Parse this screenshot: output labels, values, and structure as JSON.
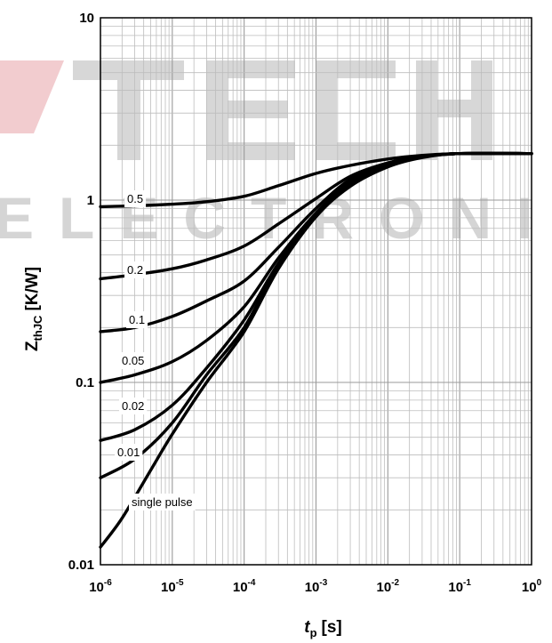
{
  "watermark": {
    "brand": "TECH",
    "subtitle": "ELECTRONIC"
  },
  "chart_data": {
    "type": "line",
    "title": "",
    "xlabel": "t",
    "xlabel_sub": "p",
    "xlabel_unit": "[s]",
    "ylabel": "Z",
    "ylabel_sub": "thJC",
    "ylabel_unit": "[K/W]",
    "x_scale": "log",
    "y_scale": "log",
    "xlim": [
      1e-06,
      1
    ],
    "ylim": [
      0.01,
      10
    ],
    "grid": true,
    "legend": "inline labels on curves",
    "x_ticks": [
      {
        "base": "10",
        "exp": "-6"
      },
      {
        "base": "10",
        "exp": "-5"
      },
      {
        "base": "10",
        "exp": "-4"
      },
      {
        "base": "10",
        "exp": "-3"
      },
      {
        "base": "10",
        "exp": "-2"
      },
      {
        "base": "10",
        "exp": "-1"
      },
      {
        "base": "10",
        "exp": "0"
      }
    ],
    "y_ticks": [
      "0.01",
      "0.1",
      "1",
      "10"
    ],
    "series": [
      {
        "name": "0.5",
        "points": [
          [
            1e-06,
            0.92
          ],
          [
            3e-06,
            0.93
          ],
          [
            1e-05,
            0.95
          ],
          [
            3e-05,
            0.98
          ],
          [
            0.0001,
            1.05
          ],
          [
            0.0003,
            1.2
          ],
          [
            0.001,
            1.4
          ],
          [
            0.003,
            1.55
          ],
          [
            0.01,
            1.68
          ],
          [
            0.03,
            1.76
          ],
          [
            0.1,
            1.8
          ],
          [
            1,
            1.8
          ]
        ]
      },
      {
        "name": "0.2",
        "points": [
          [
            1e-06,
            0.37
          ],
          [
            3e-06,
            0.39
          ],
          [
            1e-05,
            0.42
          ],
          [
            3e-05,
            0.47
          ],
          [
            0.0001,
            0.56
          ],
          [
            0.0003,
            0.74
          ],
          [
            0.001,
            1.02
          ],
          [
            0.003,
            1.35
          ],
          [
            0.01,
            1.6
          ],
          [
            0.03,
            1.74
          ],
          [
            0.1,
            1.8
          ],
          [
            1,
            1.8
          ]
        ]
      },
      {
        "name": "0.1",
        "points": [
          [
            1e-06,
            0.19
          ],
          [
            3e-06,
            0.2
          ],
          [
            1e-05,
            0.23
          ],
          [
            3e-05,
            0.28
          ],
          [
            0.0001,
            0.36
          ],
          [
            0.0003,
            0.55
          ],
          [
            0.001,
            0.9
          ],
          [
            0.003,
            1.3
          ],
          [
            0.01,
            1.58
          ],
          [
            0.03,
            1.74
          ],
          [
            0.1,
            1.8
          ],
          [
            1,
            1.8
          ]
        ]
      },
      {
        "name": "0.05",
        "points": [
          [
            1e-06,
            0.1
          ],
          [
            3e-06,
            0.11
          ],
          [
            1e-05,
            0.13
          ],
          [
            3e-05,
            0.17
          ],
          [
            0.0001,
            0.26
          ],
          [
            0.0003,
            0.48
          ],
          [
            0.001,
            0.85
          ],
          [
            0.003,
            1.25
          ],
          [
            0.01,
            1.56
          ],
          [
            0.03,
            1.73
          ],
          [
            0.1,
            1.8
          ],
          [
            1,
            1.8
          ]
        ]
      },
      {
        "name": "0.02",
        "points": [
          [
            1e-06,
            0.048
          ],
          [
            3e-06,
            0.055
          ],
          [
            1e-05,
            0.075
          ],
          [
            3e-05,
            0.12
          ],
          [
            0.0001,
            0.22
          ],
          [
            0.0003,
            0.45
          ],
          [
            0.001,
            0.83
          ],
          [
            0.003,
            1.22
          ],
          [
            0.01,
            1.54
          ],
          [
            0.03,
            1.72
          ],
          [
            0.1,
            1.8
          ],
          [
            1,
            1.8
          ]
        ]
      },
      {
        "name": "0.01",
        "points": [
          [
            1e-06,
            0.03
          ],
          [
            3e-06,
            0.038
          ],
          [
            1e-05,
            0.06
          ],
          [
            3e-05,
            0.11
          ],
          [
            0.0001,
            0.2
          ],
          [
            0.0003,
            0.44
          ],
          [
            0.001,
            0.82
          ],
          [
            0.003,
            1.2
          ],
          [
            0.01,
            1.53
          ],
          [
            0.03,
            1.72
          ],
          [
            0.1,
            1.8
          ],
          [
            1,
            1.8
          ]
        ]
      },
      {
        "name": "single pulse",
        "points": [
          [
            1e-06,
            0.0125
          ],
          [
            2e-06,
            0.018
          ],
          [
            5e-06,
            0.033
          ],
          [
            1e-05,
            0.052
          ],
          [
            3e-05,
            0.1
          ],
          [
            0.0001,
            0.19
          ],
          [
            0.0003,
            0.42
          ],
          [
            0.001,
            0.81
          ],
          [
            0.003,
            1.19
          ],
          [
            0.01,
            1.52
          ],
          [
            0.03,
            1.71
          ],
          [
            0.1,
            1.8
          ],
          [
            1,
            1.8
          ]
        ]
      }
    ]
  }
}
